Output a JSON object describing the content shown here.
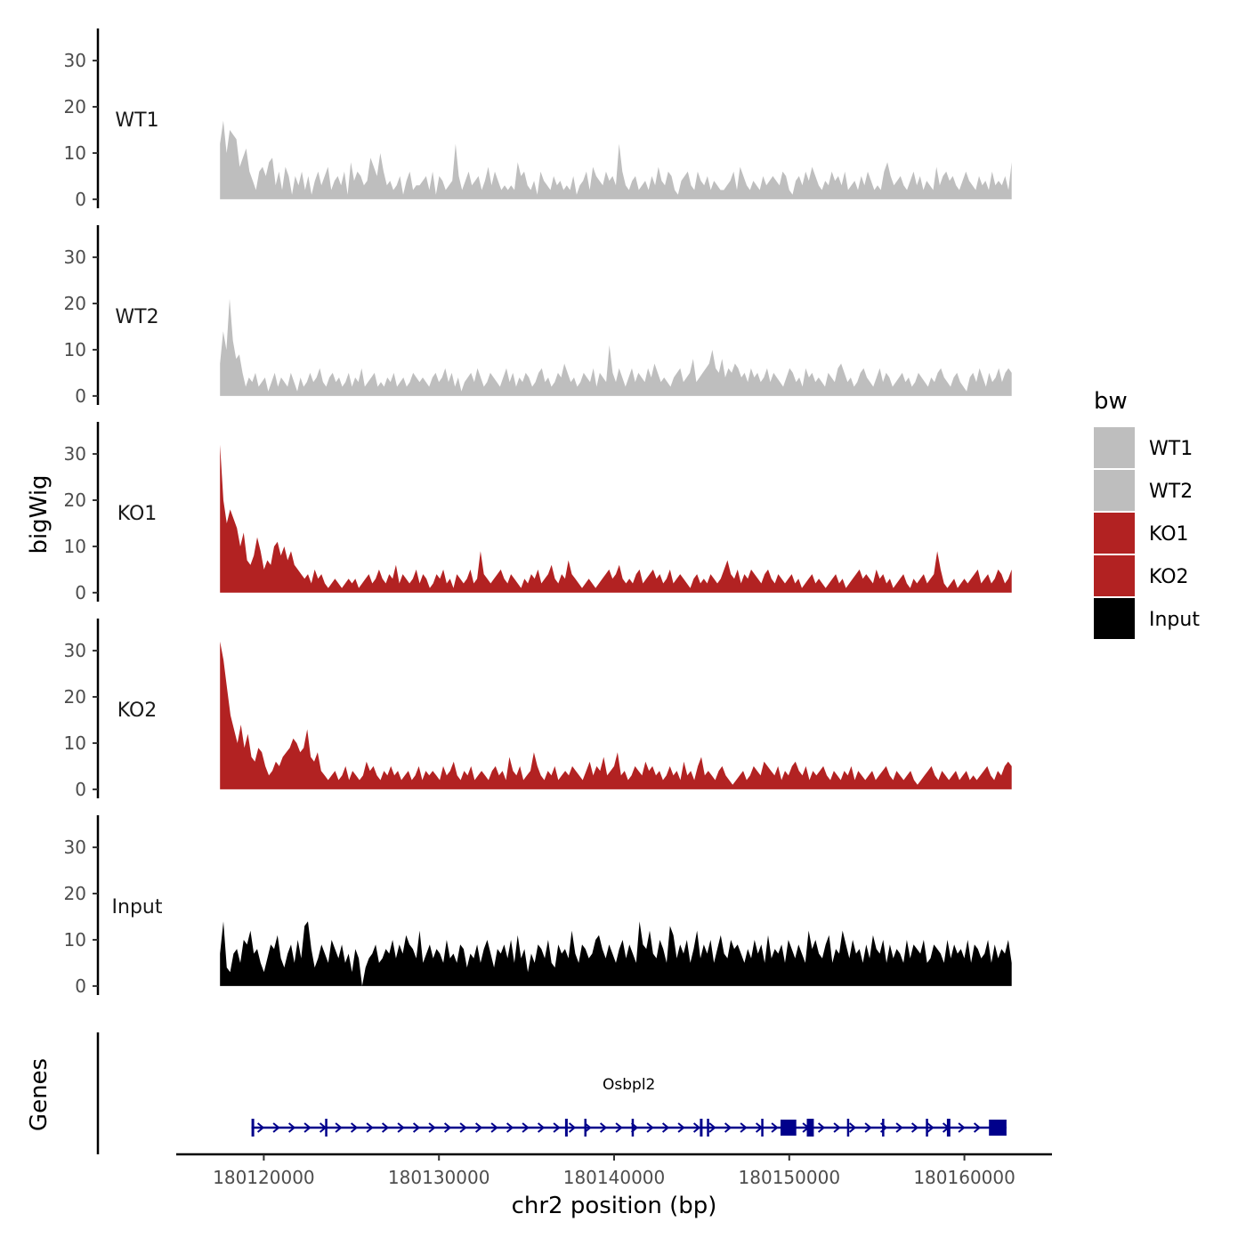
{
  "chart_data": {
    "type": "area",
    "y_axis_title": "bigWig",
    "genes_axis_title": "Genes",
    "xlabel": "chr2 position (bp)",
    "x_ticks": [
      180120000,
      180130000,
      180140000,
      180150000,
      180160000
    ],
    "x_tick_labels": [
      "180120000",
      "180130000",
      "180140000",
      "180150000",
      "180160000"
    ],
    "xlim": [
      180115000,
      180165000
    ],
    "ylim": [
      0,
      35
    ],
    "y_ticks": [
      0,
      10,
      20,
      30
    ],
    "y_tick_labels": [
      "0",
      "10",
      "20",
      "30"
    ],
    "legend": {
      "title": "bw",
      "position": "right",
      "entries": [
        {
          "label": "WT1",
          "color": "#bebebe"
        },
        {
          "label": "WT2",
          "color": "#bebebe"
        },
        {
          "label": "KO1",
          "color": "#b22222"
        },
        {
          "label": "KO2",
          "color": "#b22222"
        },
        {
          "label": "Input",
          "color": "#000000"
        }
      ]
    },
    "tracks": [
      {
        "name": "WT1",
        "color": "#bebebe",
        "x_start": 180117500,
        "x_end": 180162700,
        "values": [
          12,
          17,
          10,
          15,
          14,
          13,
          7,
          9,
          11,
          6,
          4,
          2,
          6,
          7,
          5,
          8,
          9,
          3,
          6,
          2,
          7,
          5,
          1,
          5,
          3,
          6,
          2,
          5,
          1,
          4,
          6,
          3,
          5,
          7,
          2,
          4,
          5,
          3,
          6,
          1,
          8,
          4,
          6,
          5,
          3,
          4,
          9,
          7,
          5,
          10,
          6,
          3,
          4,
          2,
          3,
          5,
          1,
          4,
          6,
          2,
          3,
          3,
          4,
          5,
          2,
          6,
          1,
          5,
          4,
          2,
          3,
          4,
          12,
          5,
          2,
          4,
          6,
          3,
          4,
          5,
          2,
          4,
          7,
          3,
          6,
          4,
          2,
          3,
          2,
          3,
          2,
          8,
          5,
          6,
          3,
          2,
          4,
          1,
          6,
          4,
          3,
          2,
          5,
          3,
          4,
          2,
          3,
          2,
          5,
          1,
          3,
          4,
          6,
          2,
          7,
          5,
          4,
          3,
          6,
          4,
          5,
          3,
          12,
          6,
          3,
          2,
          4,
          5,
          2,
          3,
          4,
          2,
          5,
          3,
          7,
          4,
          3,
          6,
          5,
          2,
          1,
          4,
          5,
          6,
          3,
          2,
          6,
          4,
          3,
          5,
          2,
          4,
          3,
          2,
          2,
          3,
          4,
          6,
          2,
          7,
          5,
          3,
          2,
          4,
          3,
          2,
          5,
          3,
          4,
          5,
          4,
          3,
          6,
          5,
          2,
          1,
          4,
          5,
          3,
          6,
          4,
          7,
          5,
          3,
          2,
          4,
          3,
          6,
          4,
          5,
          3,
          6,
          2,
          3,
          4,
          2,
          5,
          3,
          6,
          4,
          2,
          3,
          2,
          6,
          8,
          5,
          3,
          4,
          5,
          3,
          2,
          4,
          6,
          3,
          5,
          2,
          4,
          3,
          2,
          7,
          3,
          5,
          6,
          4,
          5,
          3,
          2,
          4,
          6,
          4,
          3,
          2,
          5,
          3,
          4,
          2,
          6,
          3,
          4,
          3,
          5,
          2,
          8
        ]
      },
      {
        "name": "WT2",
        "color": "#bebebe",
        "x_start": 180117500,
        "x_end": 180162700,
        "values": [
          7,
          14,
          10,
          21,
          12,
          8,
          9,
          5,
          2,
          4,
          3,
          5,
          2,
          3,
          4,
          1,
          3,
          5,
          2,
          4,
          3,
          2,
          5,
          3,
          1,
          4,
          2,
          3,
          5,
          3,
          4,
          6,
          3,
          2,
          4,
          5,
          3,
          4,
          2,
          3,
          5,
          2,
          4,
          3,
          6,
          2,
          3,
          4,
          5,
          2,
          3,
          2,
          4,
          3,
          5,
          2,
          3,
          4,
          2,
          3,
          5,
          4,
          3,
          4,
          3,
          2,
          4,
          5,
          3,
          4,
          6,
          3,
          5,
          2,
          4,
          1,
          3,
          4,
          5,
          3,
          6,
          4,
          2,
          3,
          5,
          4,
          3,
          2,
          4,
          6,
          3,
          5,
          2,
          4,
          3,
          5,
          4,
          2,
          3,
          5,
          6,
          3,
          4,
          2,
          3,
          5,
          4,
          7,
          5,
          3,
          4,
          2,
          3,
          5,
          4,
          3,
          6,
          2,
          5,
          4,
          3,
          11,
          5,
          3,
          6,
          4,
          2,
          4,
          6,
          3,
          5,
          4,
          3,
          6,
          4,
          7,
          5,
          3,
          4,
          3,
          2,
          4,
          5,
          6,
          3,
          4,
          5,
          8,
          3,
          4,
          5,
          6,
          7,
          10,
          6,
          5,
          8,
          4,
          6,
          5,
          7,
          6,
          4,
          5,
          3,
          6,
          4,
          5,
          3,
          4,
          6,
          3,
          5,
          4,
          3,
          2,
          4,
          6,
          5,
          3,
          4,
          2,
          6,
          4,
          5,
          3,
          4,
          3,
          2,
          5,
          4,
          3,
          6,
          7,
          5,
          3,
          4,
          2,
          3,
          5,
          6,
          4,
          3,
          2,
          4,
          6,
          3,
          5,
          4,
          2,
          3,
          4,
          5,
          3,
          4,
          2,
          3,
          5,
          4,
          3,
          2,
          4,
          3,
          5,
          6,
          4,
          3,
          2,
          4,
          5,
          3,
          2,
          1,
          4,
          5,
          3,
          6,
          4,
          2,
          5,
          3,
          4,
          6,
          3,
          5,
          6,
          5
        ]
      },
      {
        "name": "KO1",
        "color": "#b22222",
        "x_start": 180117500,
        "x_end": 180162700,
        "values": [
          32,
          20,
          15,
          18,
          16,
          14,
          10,
          13,
          7,
          6,
          8,
          12,
          9,
          5,
          7,
          6,
          10,
          11,
          8,
          10,
          7,
          9,
          6,
          5,
          4,
          3,
          4,
          2,
          5,
          3,
          4,
          2,
          1,
          2,
          3,
          2,
          1,
          2,
          3,
          2,
          3,
          1,
          2,
          3,
          4,
          2,
          3,
          5,
          3,
          2,
          4,
          3,
          6,
          2,
          4,
          3,
          2,
          3,
          5,
          2,
          4,
          3,
          1,
          2,
          4,
          3,
          5,
          2,
          3,
          1,
          4,
          3,
          2,
          3,
          5,
          2,
          3,
          9,
          4,
          3,
          2,
          3,
          4,
          5,
          3,
          2,
          4,
          3,
          2,
          1,
          3,
          2,
          4,
          3,
          5,
          2,
          3,
          4,
          6,
          3,
          2,
          4,
          3,
          7,
          4,
          3,
          2,
          1,
          2,
          3,
          2,
          1,
          2,
          3,
          4,
          5,
          3,
          4,
          6,
          3,
          2,
          3,
          2,
          4,
          5,
          2,
          3,
          4,
          5,
          3,
          4,
          2,
          3,
          5,
          2,
          3,
          4,
          3,
          2,
          1,
          3,
          4,
          2,
          3,
          2,
          4,
          3,
          2,
          3,
          5,
          7,
          4,
          3,
          5,
          2,
          4,
          3,
          5,
          4,
          3,
          2,
          4,
          5,
          3,
          2,
          4,
          3,
          2,
          3,
          4,
          2,
          3,
          1,
          2,
          3,
          4,
          2,
          3,
          2,
          1,
          2,
          3,
          4,
          2,
          3,
          1,
          2,
          3,
          4,
          5,
          3,
          4,
          3,
          2,
          5,
          3,
          4,
          2,
          3,
          1,
          2,
          3,
          4,
          2,
          1,
          3,
          2,
          3,
          4,
          2,
          3,
          4,
          9,
          5,
          2,
          1,
          2,
          3,
          1,
          2,
          3,
          2,
          3,
          4,
          5,
          2,
          3,
          4,
          2,
          3,
          5,
          4,
          2,
          3,
          5
        ]
      },
      {
        "name": "KO2",
        "color": "#b22222",
        "x_start": 180117500,
        "x_end": 180162700,
        "values": [
          32,
          28,
          22,
          16,
          13,
          10,
          14,
          9,
          12,
          7,
          6,
          9,
          8,
          5,
          3,
          4,
          6,
          5,
          7,
          8,
          9,
          11,
          10,
          8,
          9,
          13,
          7,
          6,
          8,
          4,
          3,
          2,
          3,
          4,
          2,
          3,
          5,
          2,
          4,
          3,
          2,
          3,
          6,
          4,
          5,
          3,
          2,
          4,
          3,
          5,
          3,
          4,
          2,
          3,
          4,
          2,
          3,
          5,
          2,
          4,
          3,
          4,
          3,
          2,
          5,
          3,
          4,
          6,
          3,
          2,
          4,
          3,
          5,
          2,
          3,
          4,
          3,
          2,
          4,
          5,
          3,
          4,
          2,
          7,
          4,
          3,
          5,
          2,
          3,
          4,
          8,
          5,
          3,
          2,
          4,
          3,
          5,
          2,
          3,
          4,
          3,
          5,
          4,
          3,
          2,
          4,
          6,
          3,
          5,
          4,
          7,
          3,
          4,
          5,
          8,
          3,
          4,
          2,
          3,
          5,
          4,
          3,
          6,
          4,
          5,
          3,
          4,
          2,
          3,
          5,
          3,
          4,
          2,
          6,
          3,
          4,
          2,
          5,
          7,
          3,
          4,
          3,
          2,
          4,
          5,
          3,
          2,
          1,
          2,
          3,
          4,
          2,
          3,
          5,
          4,
          3,
          6,
          5,
          4,
          3,
          5,
          2,
          4,
          3,
          5,
          6,
          4,
          3,
          5,
          2,
          4,
          3,
          4,
          5,
          3,
          2,
          4,
          3,
          2,
          4,
          3,
          5,
          2,
          4,
          3,
          2,
          3,
          4,
          2,
          3,
          4,
          5,
          3,
          2,
          4,
          3,
          2,
          3,
          4,
          2,
          1,
          2,
          3,
          4,
          5,
          3,
          2,
          4,
          3,
          2,
          3,
          4,
          2,
          3,
          4,
          2,
          3,
          2,
          3,
          4,
          5,
          3,
          2,
          4,
          3,
          5,
          6,
          5
        ]
      },
      {
        "name": "Input",
        "color": "#000000",
        "x_start": 180117500,
        "x_end": 180162700,
        "values": [
          7,
          14,
          4,
          3,
          7,
          8,
          5,
          10,
          9,
          12,
          7,
          8,
          5,
          3,
          6,
          9,
          8,
          11,
          6,
          4,
          7,
          9,
          5,
          10,
          6,
          13,
          14,
          8,
          4,
          6,
          9,
          7,
          5,
          10,
          8,
          6,
          9,
          5,
          7,
          3,
          8,
          6,
          0,
          4,
          6,
          7,
          9,
          5,
          6,
          8,
          7,
          10,
          6,
          9,
          7,
          11,
          9,
          8,
          6,
          12,
          5,
          7,
          9,
          6,
          8,
          7,
          5,
          10,
          6,
          7,
          5,
          9,
          8,
          4,
          7,
          6,
          9,
          5,
          8,
          10,
          7,
          4,
          8,
          7,
          9,
          6,
          10,
          5,
          11,
          6,
          8,
          3,
          7,
          5,
          9,
          8,
          6,
          10,
          5,
          4,
          9,
          7,
          8,
          6,
          12,
          7,
          5,
          9,
          8,
          6,
          7,
          10,
          11,
          8,
          6,
          9,
          7,
          5,
          8,
          10,
          6,
          9,
          7,
          5,
          14,
          9,
          8,
          12,
          7,
          6,
          10,
          8,
          5,
          13,
          11,
          6,
          9,
          7,
          10,
          5,
          8,
          12,
          6,
          9,
          7,
          10,
          5,
          8,
          11,
          7,
          6,
          10,
          8,
          9,
          7,
          5,
          8,
          6,
          10,
          7,
          9,
          5,
          11,
          6,
          8,
          7,
          9,
          5,
          10,
          8,
          6,
          9,
          7,
          5,
          12,
          8,
          10,
          7,
          6,
          9,
          11,
          5,
          8,
          7,
          12,
          9,
          6,
          10,
          7,
          8,
          5,
          9,
          6,
          11,
          8,
          7,
          10,
          5,
          9,
          6,
          8,
          7,
          5,
          10,
          6,
          9,
          8,
          7,
          10,
          5,
          6,
          9,
          8,
          7,
          5,
          10,
          6,
          9,
          7,
          8,
          6,
          10,
          5,
          9,
          8,
          6,
          7,
          10,
          5,
          9,
          6,
          8,
          7,
          10,
          5
        ]
      }
    ],
    "gene": {
      "name": "Osbpl2",
      "strand": "+",
      "start": 180119300,
      "end": 180162400,
      "exons": [
        {
          "start": 180119300,
          "end": 180119450
        },
        {
          "start": 180123500,
          "end": 180123600
        },
        {
          "start": 180137200,
          "end": 180137350
        },
        {
          "start": 180138300,
          "end": 180138400
        },
        {
          "start": 180141000,
          "end": 180141100
        },
        {
          "start": 180144900,
          "end": 180145050
        },
        {
          "start": 180145300,
          "end": 180145400
        },
        {
          "start": 180148400,
          "end": 180148500
        },
        {
          "start": 180149500,
          "end": 180150400
        },
        {
          "start": 180151000,
          "end": 180151400
        },
        {
          "start": 180153300,
          "end": 180153400
        },
        {
          "start": 180155300,
          "end": 180155400
        },
        {
          "start": 180157800,
          "end": 180157900
        },
        {
          "start": 180159000,
          "end": 180159200
        },
        {
          "start": 180161400,
          "end": 180162400
        }
      ]
    }
  }
}
